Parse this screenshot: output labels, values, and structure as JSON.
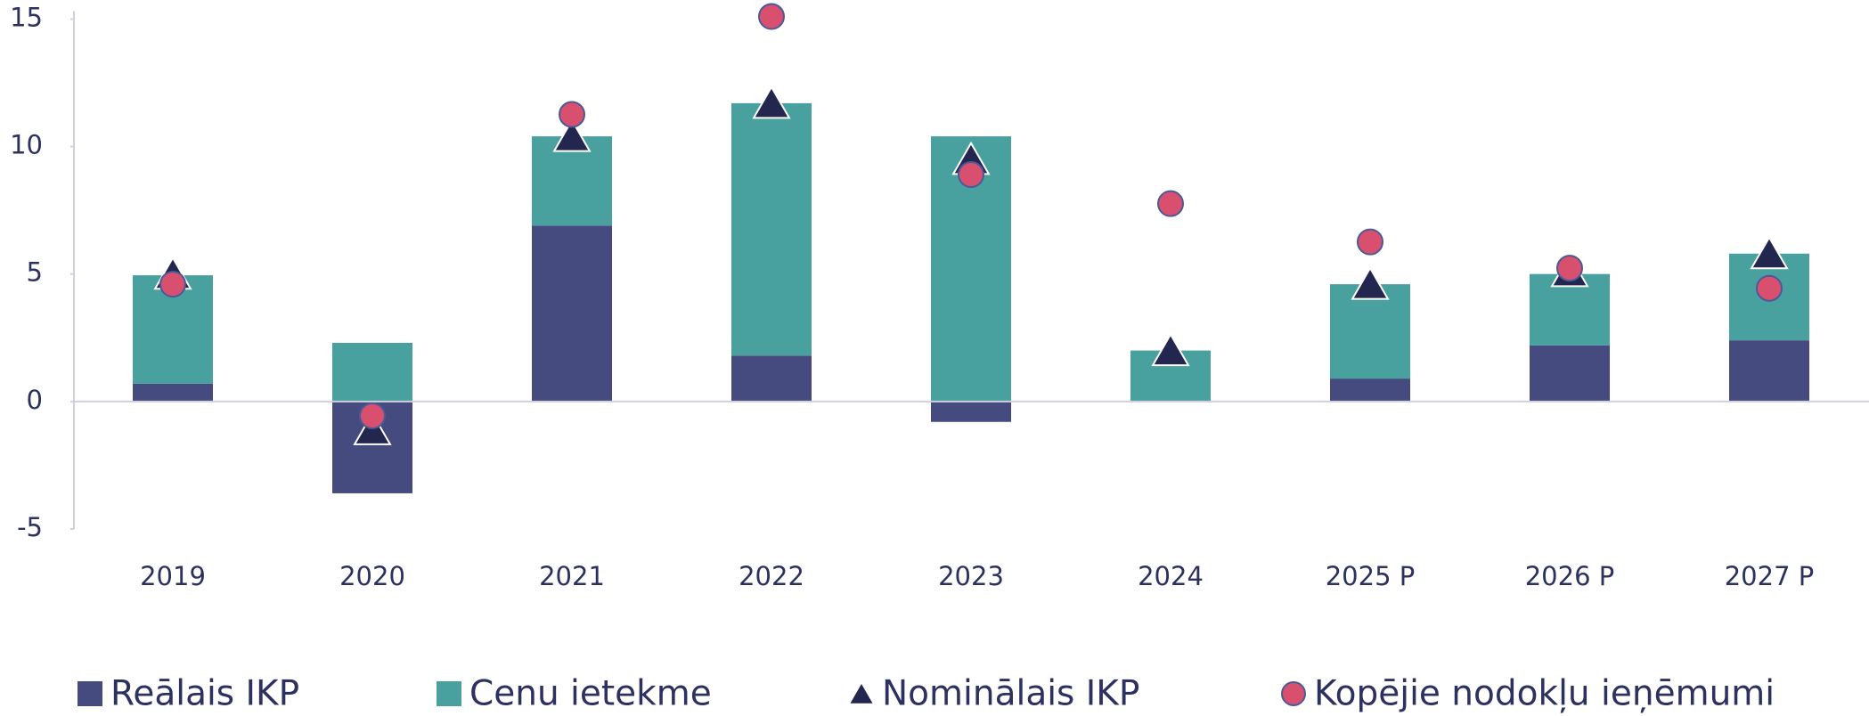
{
  "chart_data": {
    "type": "bar",
    "categories": [
      "2019",
      "2020",
      "2021",
      "2022",
      "2023",
      "2024",
      "2025 P",
      "2026 P",
      "2027 P"
    ],
    "series": [
      {
        "name": "Reālais IKP",
        "color": "#454a7f",
        "kind": "bar",
        "values": [
          0.7,
          -3.6,
          6.9,
          1.8,
          -0.8,
          0.0,
          0.9,
          2.2,
          2.4
        ]
      },
      {
        "name": "Cenu ietekme",
        "color": "#48a09f",
        "kind": "bar",
        "values": [
          4.25,
          2.3,
          3.5,
          9.9,
          10.4,
          2.0,
          3.7,
          2.8,
          3.4
        ]
      },
      {
        "name": "Nominālais IKP",
        "color": "#23264e",
        "kind": "triangle",
        "values": [
          4.9,
          -1.2,
          10.3,
          11.6,
          9.4,
          1.9,
          4.5,
          5.0,
          5.7
        ]
      },
      {
        "name": "Kopējie nodokļu ieņēmumi",
        "color": "#d8506e",
        "kind": "circle",
        "values": [
          4.6,
          -0.56,
          11.26,
          15.1,
          8.9,
          7.76,
          6.26,
          5.23,
          4.44
        ]
      }
    ],
    "stacked": true,
    "ylim": [
      -5,
      15.3
    ],
    "yticks": [
      -5,
      0,
      5,
      10,
      15
    ],
    "grid": false
  }
}
